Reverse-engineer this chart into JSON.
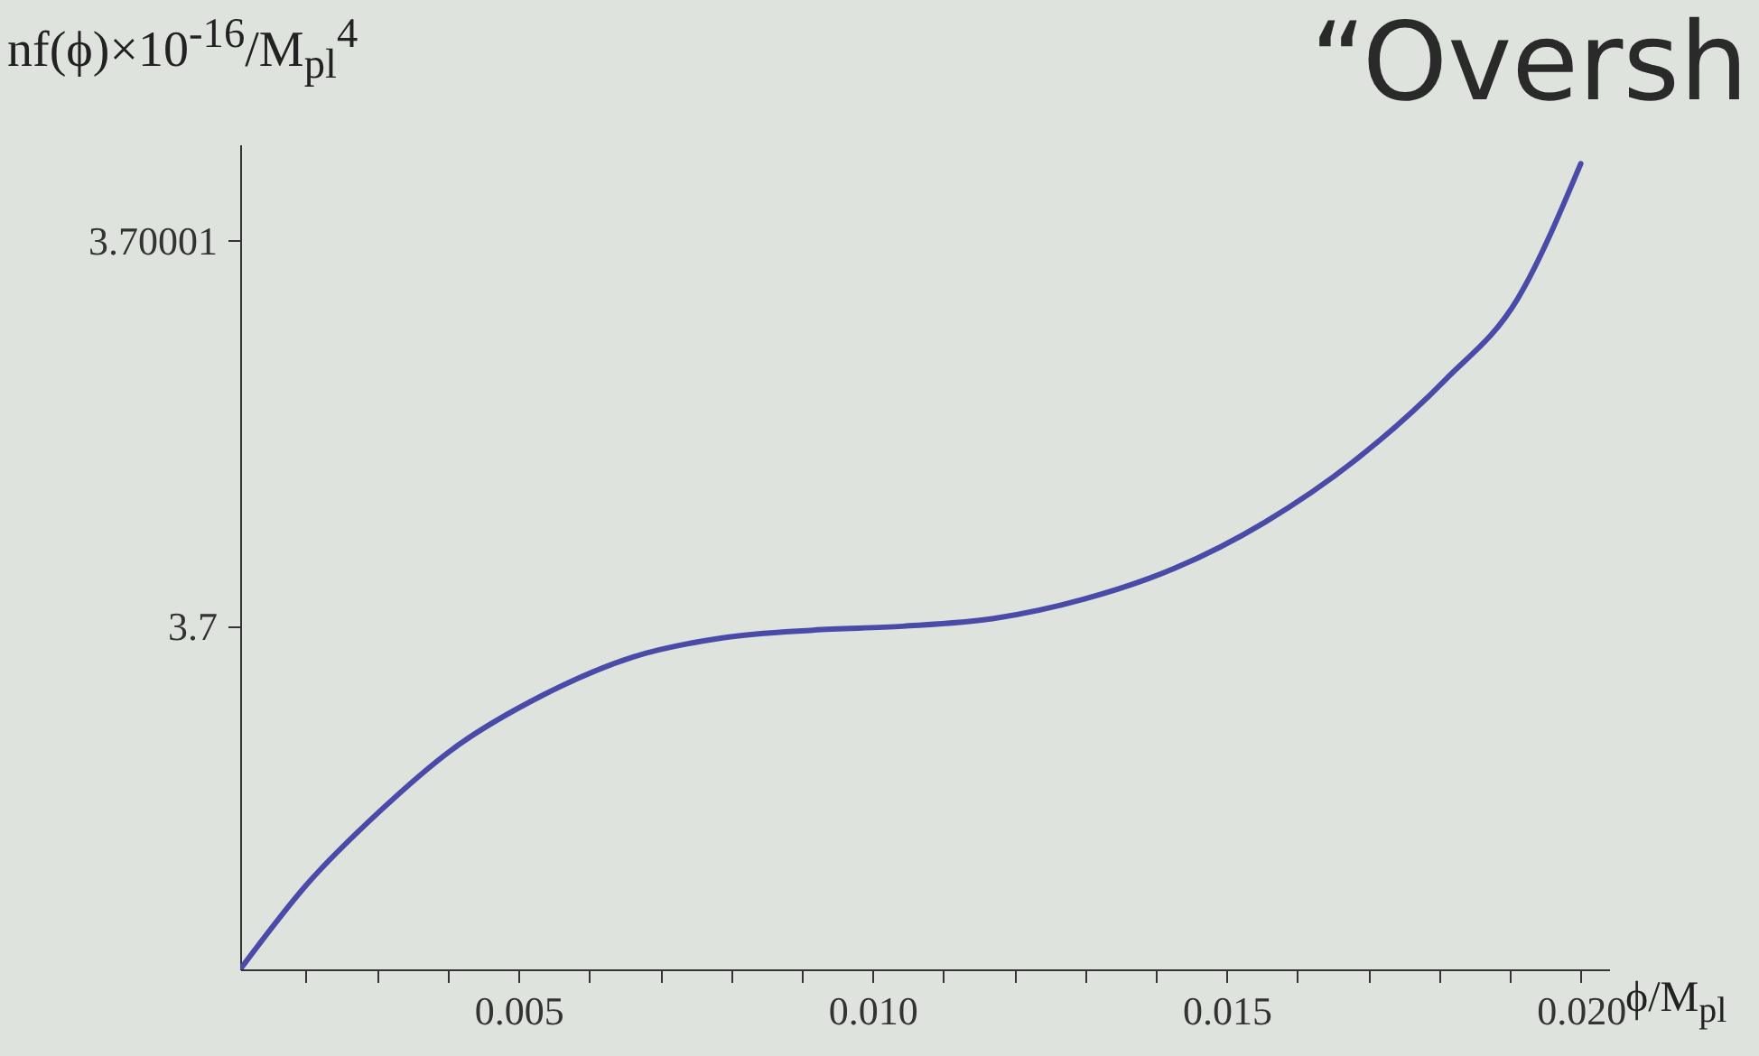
{
  "chart_data": {
    "type": "line",
    "title": "“Oversh",
    "xlabel": "ϕ/M$_{pl}$",
    "ylabel": "nf(ϕ)×10$^{-16}$/M$_{pl}$$^{4}$",
    "x": [
      0.00107,
      0.00201,
      0.00304,
      0.00406,
      0.00533,
      0.00661,
      0.00788,
      0.00916,
      0.01043,
      0.01171,
      0.01298,
      0.01426,
      0.01554,
      0.01681,
      0.01809,
      0.01911,
      0.02
    ],
    "series": [
      {
        "color": "#4a4aa8",
        "values": [
          3.6999911,
          3.6999933,
          3.6999952,
          3.6999968,
          3.6999982,
          3.6999992,
          3.6999997,
          3.6999999,
          3.7,
          3.7000002,
          3.7000007,
          3.7000015,
          3.7000027,
          3.7000043,
          3.7000064,
          3.7000085,
          3.700012
        ]
      }
    ],
    "xlim": [
      0.00107,
      0.0204
    ],
    "ylim": [
      3.6999911,
      3.7000125
    ],
    "xticks": [
      {
        "value": 0.002,
        "label": null
      },
      {
        "value": 0.003,
        "label": null
      },
      {
        "value": 0.004,
        "label": null
      },
      0.005,
      {
        "value": 0.006,
        "label": null
      },
      {
        "value": 0.007,
        "label": null
      },
      {
        "value": 0.008,
        "label": null
      },
      {
        "value": 0.009,
        "label": null
      },
      {
        "value": 0.01,
        "label": "0.010"
      },
      {
        "value": 0.011,
        "label": null
      },
      {
        "value": 0.012,
        "label": null
      },
      {
        "value": 0.013,
        "label": null
      },
      {
        "value": 0.014,
        "label": null
      },
      0.015,
      {
        "value": 0.016,
        "label": null
      },
      {
        "value": 0.017,
        "label": null
      },
      {
        "value": 0.018,
        "label": null
      },
      {
        "value": 0.019,
        "label": null
      },
      {
        "value": 0.02,
        "label": "0.020"
      }
    ],
    "yticks": [
      3.7,
      3.70001
    ],
    "grid": false,
    "line_style": "solid",
    "marker": "none"
  }
}
